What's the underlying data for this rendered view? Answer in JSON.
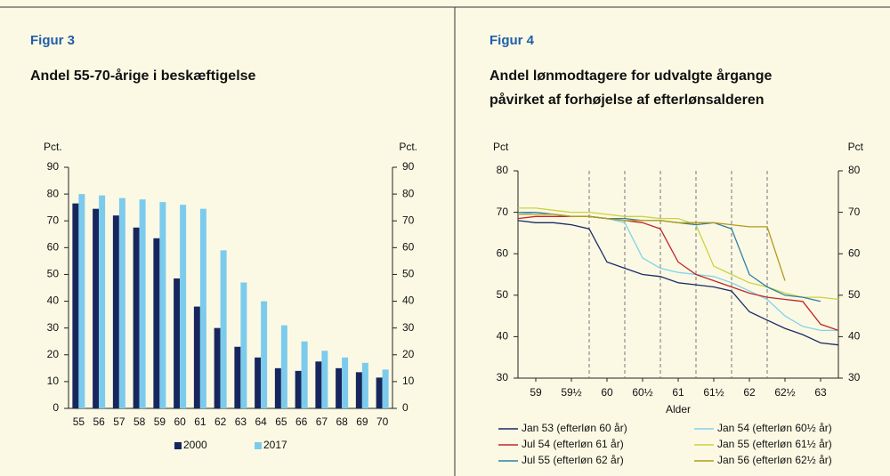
{
  "chart_data": [
    {
      "type": "bar",
      "figure": "Figur 3",
      "title": [
        "Andel 55-70-årige i beskæftigelse"
      ],
      "y_unit": "Pct.",
      "y2_unit": "Pct.",
      "categories": [
        "55",
        "56",
        "57",
        "58",
        "59",
        "60",
        "61",
        "62",
        "63",
        "64",
        "65",
        "66",
        "67",
        "68",
        "69",
        "70"
      ],
      "series": [
        {
          "name": "2000",
          "color": "#17275e",
          "values": [
            76.5,
            74.5,
            72,
            67.5,
            63.5,
            48.5,
            38,
            30,
            23,
            19,
            15,
            14,
            17.5,
            15,
            13.5,
            11.5
          ]
        },
        {
          "name": "2017",
          "color": "#7ccbed",
          "values": [
            80,
            79.5,
            78.5,
            78,
            77,
            76,
            74.5,
            59,
            47,
            40,
            31,
            25,
            21.5,
            19,
            17,
            14.5
          ]
        }
      ],
      "ylim": [
        0,
        90
      ],
      "yticks": [
        0,
        10,
        20,
        30,
        40,
        50,
        60,
        70,
        80,
        90
      ],
      "y2lim": [
        0,
        90
      ],
      "y2ticks": [
        0,
        10,
        20,
        30,
        40,
        50,
        60,
        70,
        80,
        90
      ],
      "legend": "bottom"
    },
    {
      "type": "line",
      "figure": "Figur 4",
      "title": [
        "Andel lønmodtagere for udvalgte årgange",
        "påvirket af forhøjelse af efterlønsalderen"
      ],
      "y_unit": "Pct",
      "y2_unit": "Pct",
      "x_label": "Alder",
      "x": [
        59,
        59.25,
        59.5,
        59.75,
        60,
        60.25,
        60.5,
        60.75,
        61,
        61.25,
        61.5,
        61.75,
        62,
        62.25,
        62.5,
        62.75,
        63,
        63.25,
        63.5
      ],
      "series": [
        {
          "name": "Jan 53 (efterløn 60 år)",
          "color": "#1b2a66",
          "values": [
            68,
            67.5,
            67.5,
            67,
            66,
            58,
            56.5,
            55,
            54.5,
            53,
            52.5,
            52,
            51,
            46,
            44,
            42,
            40.5,
            38.5,
            38
          ]
        },
        {
          "name": "Jan 54 (efterløn 60½ år)",
          "color": "#7fd3ea",
          "values": [
            69.5,
            70,
            69.5,
            69,
            69,
            68.5,
            67.5,
            59,
            56.5,
            55.5,
            55,
            54.5,
            53,
            51,
            49,
            45,
            42.5,
            41.5,
            41.5
          ]
        },
        {
          "name": "Jul 54 (efterløn 61 år)",
          "color": "#c1272d",
          "values": [
            68.5,
            69,
            69,
            69,
            69,
            68.5,
            68,
            67.5,
            66,
            58,
            55,
            53.5,
            52,
            50.5,
            49.5,
            49,
            48.5,
            43,
            41.5
          ]
        },
        {
          "name": "Jan 55 (efterløn 61½ år)",
          "color": "#c9d341",
          "values": [
            71,
            71,
            70.5,
            70,
            70,
            69.5,
            69,
            69,
            68.5,
            68.5,
            67,
            57,
            55,
            53,
            52,
            50.5,
            49.5,
            49.5,
            49
          ]
        },
        {
          "name": "Jul 55 (efterløn 62 år)",
          "color": "#2f7fa6",
          "values": [
            70,
            70,
            69.5,
            69,
            69,
            68.5,
            68.5,
            68,
            68,
            67.5,
            67,
            67.5,
            66,
            55,
            52,
            50,
            49.5,
            48.5,
            null
          ]
        },
        {
          "name": "Jan 56 (efterløn 62½ år)",
          "color": "#b59a1c",
          "values": [
            69.5,
            69.5,
            69.5,
            69,
            69,
            68.5,
            68,
            68,
            68,
            67.5,
            67.5,
            67.5,
            67,
            66.5,
            66.5,
            53.5,
            null,
            null,
            null
          ]
        }
      ],
      "xlim": [
        59,
        63.5
      ],
      "xticks": [
        {
          "value": 59.25,
          "label": "59"
        },
        {
          "value": 59.75,
          "label": "59½"
        },
        {
          "value": 60.25,
          "label": "60"
        },
        {
          "value": 60.75,
          "label": "60½"
        },
        {
          "value": 61.25,
          "label": "61"
        },
        {
          "value": 61.75,
          "label": "61½"
        },
        {
          "value": 62.25,
          "label": "62"
        },
        {
          "value": 62.75,
          "label": "62½"
        },
        {
          "value": 63.25,
          "label": "63"
        }
      ],
      "vlines": [
        60,
        60.5,
        61,
        61.5,
        62,
        62.5
      ],
      "ylim": [
        30,
        80
      ],
      "yticks": [
        30,
        40,
        50,
        60,
        70,
        80
      ],
      "y2lim": [
        30,
        80
      ],
      "y2ticks": [
        30,
        40,
        50,
        60,
        70,
        80
      ],
      "legend": "bottom"
    }
  ]
}
